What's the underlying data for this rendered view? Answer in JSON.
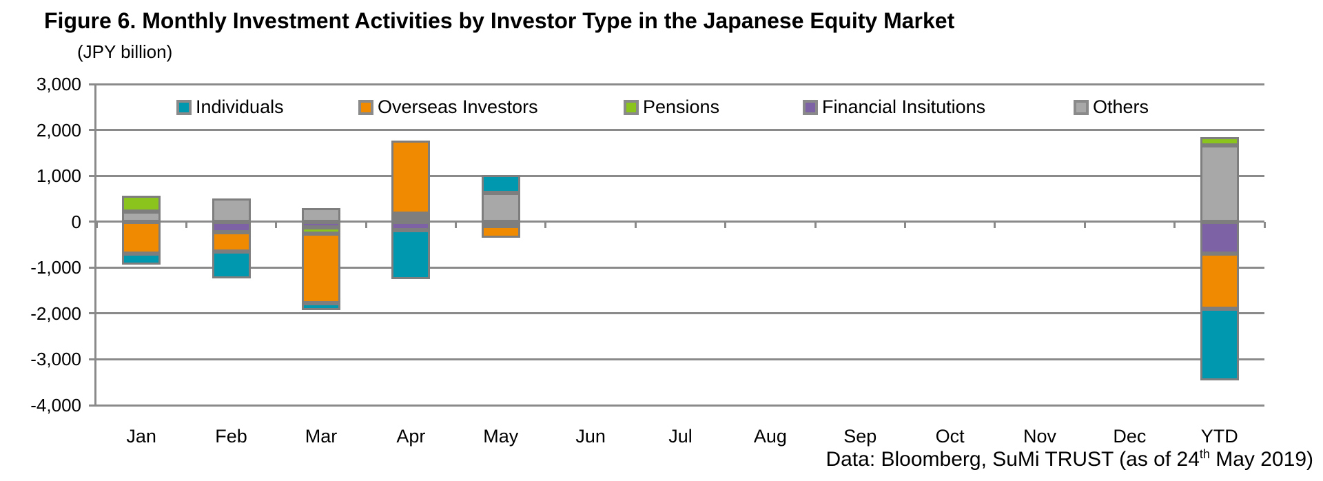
{
  "title": "Figure 6. Monthly Investment Activities by Investor Type in the Japanese Equity Market",
  "unit_label": "(JPY billion)",
  "footer": {
    "prefix": "Data: Bloomberg, SuMi TRUST (as of 24",
    "superscript": "th",
    "suffix": " May 2019)"
  },
  "colors": {
    "individuals": "#0098AE",
    "overseas_investors": "#F08A00",
    "pensions": "#8CC41E",
    "financial_institutions": "#7D63A5",
    "others": "#A8A8A8",
    "bar_border": "#7E7E7E",
    "gridline": "#8A8A8A",
    "text": "#000000"
  },
  "chart_data": {
    "type": "bar",
    "stacked": true,
    "title": "Figure 6. Monthly Investment Activities by Investor Type in the Japanese Equity Market",
    "ylabel": "(JPY billion)",
    "categories": [
      "Jan",
      "Feb",
      "Mar",
      "Apr",
      "May",
      "Jun",
      "Jul",
      "Aug",
      "Sep",
      "Oct",
      "Nov",
      "Dec",
      "YTD"
    ],
    "series": [
      {
        "name": "Individuals",
        "color": "#0098AE",
        "values": [
          -250,
          -580,
          -150,
          -1060,
          390,
          0,
          0,
          0,
          0,
          0,
          0,
          0,
          -1570
        ]
      },
      {
        "name": "Overseas Investors",
        "color": "#F08A00",
        "values": [
          -690,
          -420,
          -1520,
          1600,
          -250,
          0,
          0,
          0,
          0,
          0,
          0,
          0,
          -1190
        ]
      },
      {
        "name": "Pensions",
        "color": "#8CC41E",
        "values": [
          340,
          0,
          -130,
          80,
          -100,
          0,
          0,
          0,
          0,
          0,
          0,
          0,
          180
        ]
      },
      {
        "name": "Financial Insitutions",
        "color": "#7D63A5",
        "values": [
          0,
          -230,
          -130,
          -190,
          0,
          0,
          0,
          0,
          0,
          0,
          0,
          0,
          -700
        ]
      },
      {
        "name": "Others",
        "color": "#A8A8A8",
        "values": [
          220,
          500,
          300,
          90,
          620,
          0,
          0,
          0,
          0,
          0,
          0,
          0,
          1660
        ]
      }
    ],
    "ylim": [
      -4000,
      3000
    ],
    "ytick_step": 1000,
    "ytick_labels": [
      "3,000",
      "2,000",
      "1,000",
      "0",
      "-1,000",
      "-2,000",
      "-3,000",
      "-4,000"
    ],
    "grid": true,
    "legend_position": "top-inside",
    "stack_render_order": "reversed (Others nearest zero, Individuals outermost)"
  }
}
